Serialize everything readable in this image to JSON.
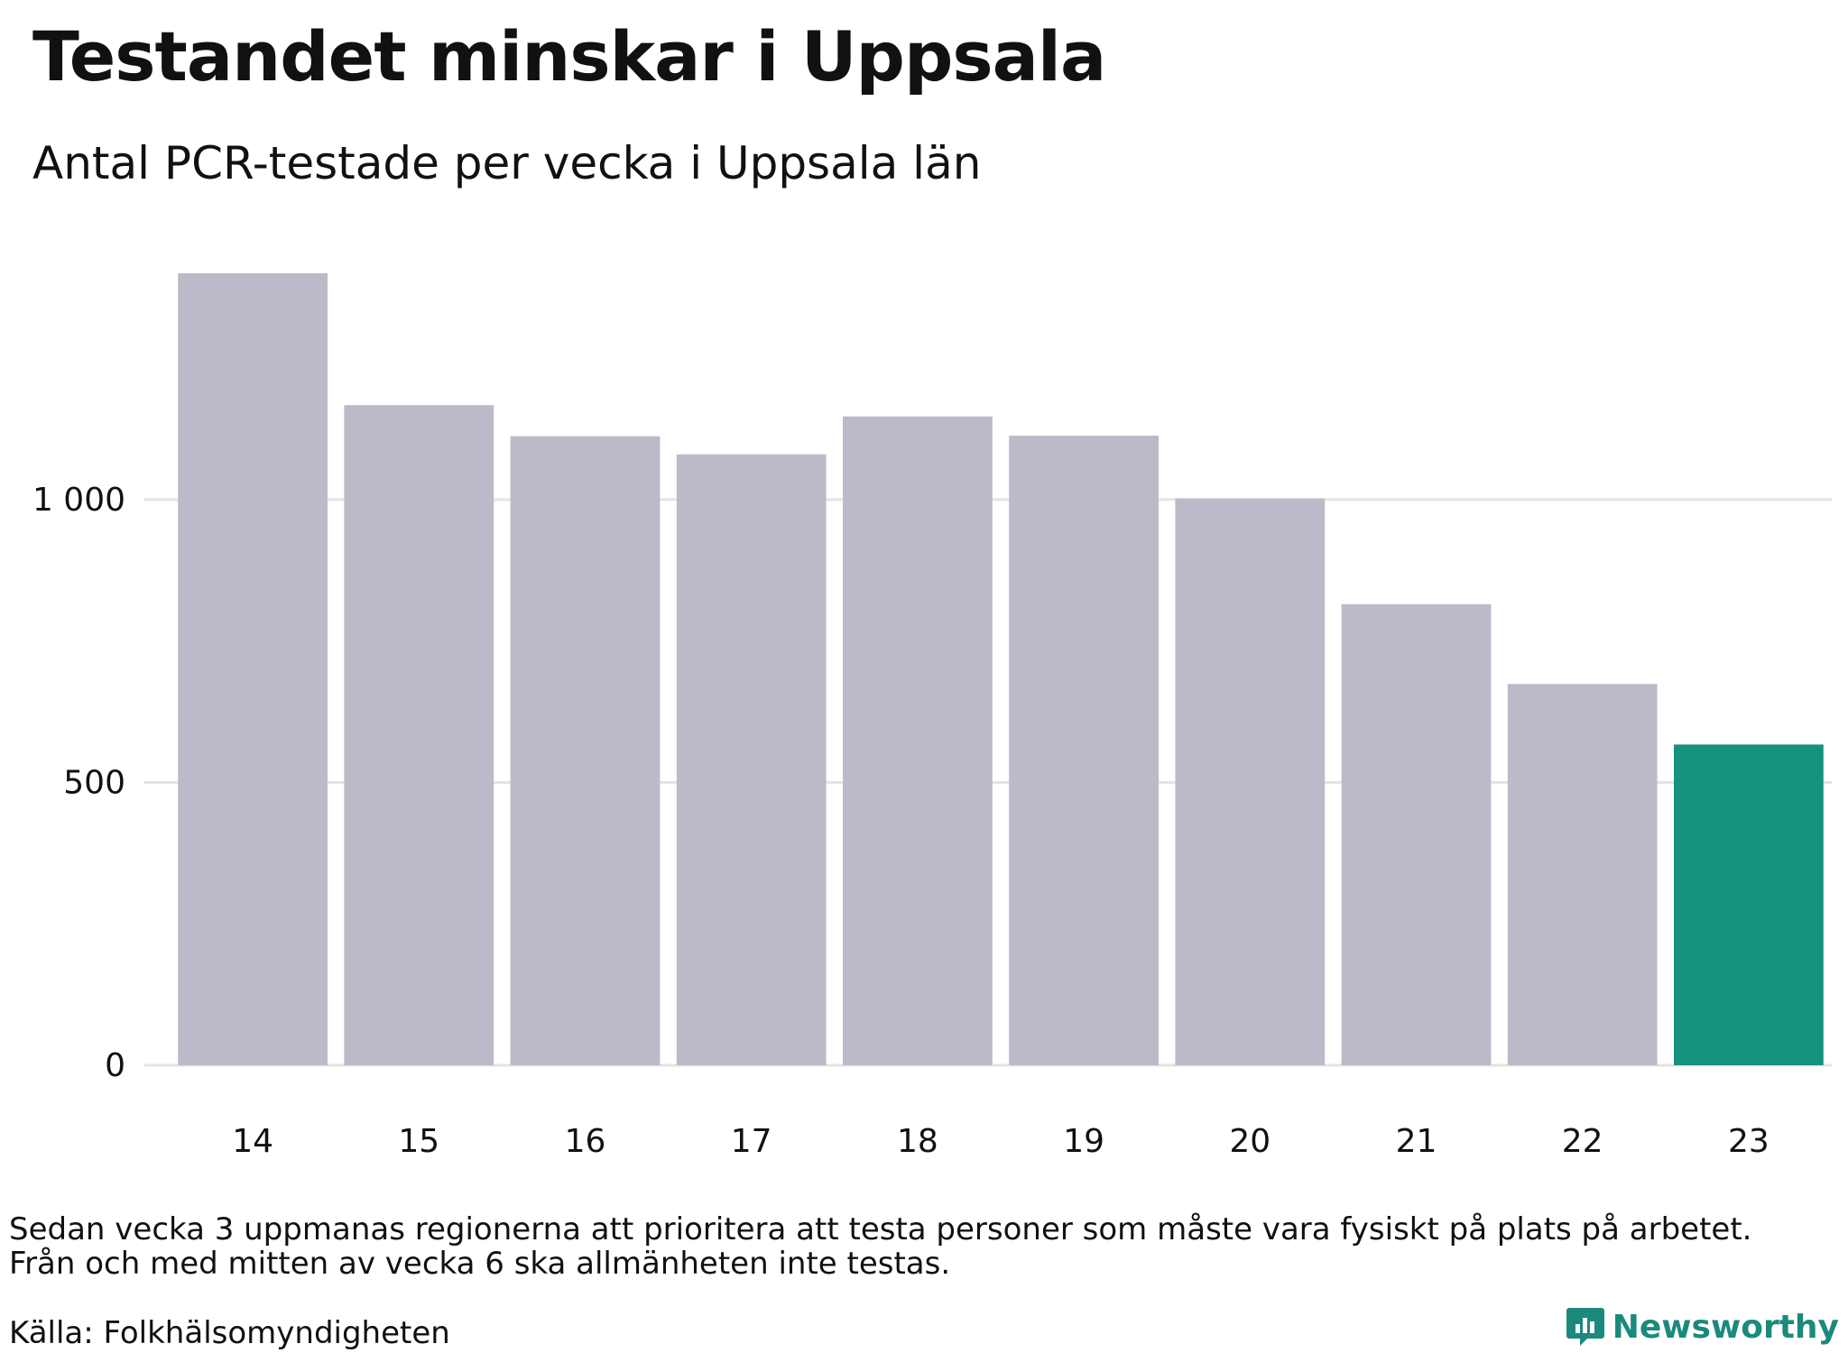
{
  "title": "Testandet minskar i Uppsala",
  "subtitle": "Antal PCR-testade per vecka i Uppsala län",
  "chart_data": {
    "type": "bar",
    "title": "Testandet minskar i Uppsala",
    "subtitle": "Antal PCR-testade per vecka i Uppsala län",
    "xlabel": "",
    "ylabel": "",
    "categories": [
      "14",
      "15",
      "16",
      "17",
      "18",
      "19",
      "20",
      "21",
      "22",
      "23"
    ],
    "values": [
      1400,
      1167,
      1112,
      1080,
      1147,
      1113,
      1002,
      815,
      674,
      567
    ],
    "ylim": [
      0,
      1400
    ],
    "yticks": [
      0,
      500,
      1000
    ],
    "ytick_labels": [
      "0",
      "500",
      "1 000"
    ],
    "highlight_index": 9,
    "grid": true,
    "legend": "none",
    "colors": {
      "bar": "#bcbac8",
      "highlight": "#16907f",
      "grid": "#e3e3e3",
      "text": "#111111"
    }
  },
  "notes": {
    "line1": "Sedan vecka 3 uppmanas regionerna att prioritera att testa personer som måste vara fysiskt på plats på arbetet.",
    "line2": "Från och med mitten av vecka 6 ska allmänheten inte testas."
  },
  "source": "Källa: Folkhälsomyndigheten",
  "brand": {
    "name": "Newsworthy",
    "icon": "newsworthy-logo-icon",
    "color": "#1b8a7d"
  }
}
